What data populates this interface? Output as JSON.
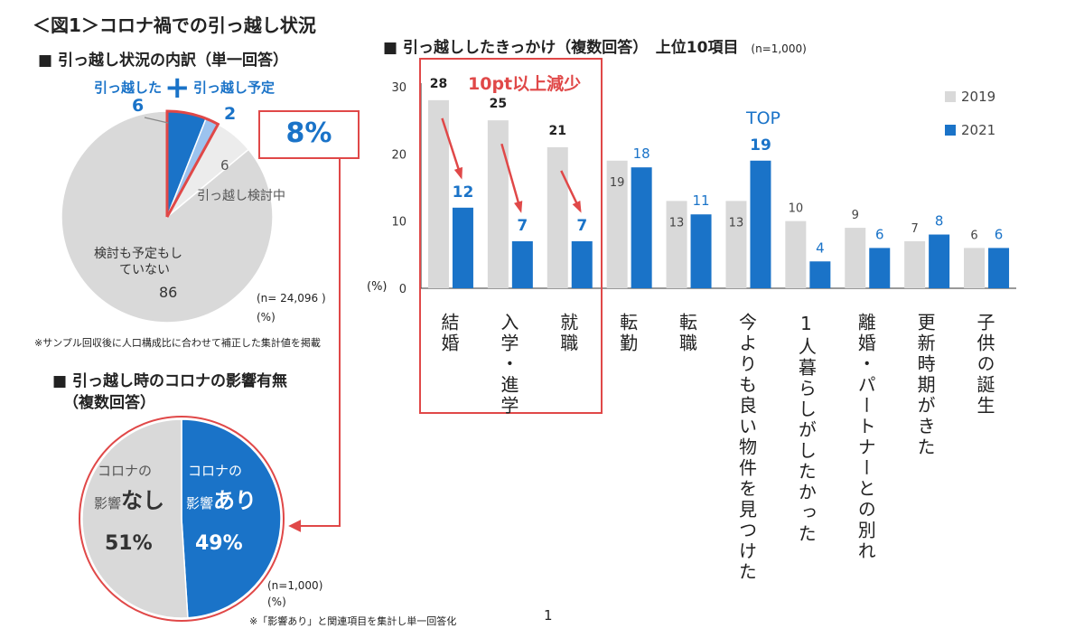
{
  "figure_title": "＜図1＞コロナ禍での引っ越し状況",
  "left_top": {
    "heading": "■ 引っ越し状況の内訳（単一回答）",
    "plus_sign": "+",
    "sample_note": "(n= 24,096 )",
    "unit": "(%)",
    "footnote": "※サンプル回収後に人口構成比に合わせて補正した集計値を掲載",
    "highlight": "8%"
  },
  "left_bottom": {
    "heading_line1": "■ 引っ越し時のコロナの影響有無",
    "heading_line2": "（複数回答）",
    "sample_note": "(n=1,000)",
    "unit": "(%)",
    "footnote": "※「影響あり」と関連項目を集計し単一回答化"
  },
  "right": {
    "heading": "■ 引っ越ししたきっかけ（複数回答）　上位10項目",
    "sample_note": "(n=1,000)",
    "unit": "(%)",
    "decline_note": "10pt以上減少",
    "top_label": "TOP"
  },
  "page_number": "1",
  "colors": {
    "c2019": "#d9d9d9",
    "c2021": "#1a73c8",
    "accent": "#e04848",
    "light_blue": "#9cc3ef"
  },
  "chart_data": [
    {
      "type": "pie",
      "slices": [
        {
          "label": "引っ越した",
          "value": 6
        },
        {
          "label": "引っ越し予定",
          "value": 2
        },
        {
          "label": "引っ越し検討中",
          "value": 6
        },
        {
          "label": "検討も予定もしていない",
          "value": 86
        }
      ],
      "value_labels": [
        "6",
        "2",
        "6",
        "86"
      ],
      "label_lines": {
        "considering": "引っ越し検討中",
        "none_1": "検討も予定もし",
        "none_2": "ていない"
      }
    },
    {
      "type": "pie",
      "slices": [
        {
          "label": "コロナの影響あり",
          "value": 49
        },
        {
          "label": "コロナの影響なし",
          "value": 51
        }
      ],
      "label_parts": {
        "corona": "コロナの",
        "eikyo": "影響",
        "ari": "あり",
        "nashi": "なし",
        "ari_pct": "49%",
        "nashi_pct": "51%"
      }
    },
    {
      "type": "bar",
      "categories": [
        "結婚",
        "入学・進学",
        "就職",
        "転勤",
        "転職",
        "今よりも良い物件を見つけた",
        "1人暮らしがしたかった",
        "離婚・パートナーとの別れ",
        "更新時期がきた",
        "子供の誕生"
      ],
      "series": [
        {
          "name": "2019",
          "values": [
            28,
            25,
            21,
            19,
            13,
            13,
            10,
            9,
            7,
            6
          ]
        },
        {
          "name": "2021",
          "values": [
            12,
            7,
            7,
            18,
            11,
            19,
            4,
            6,
            8,
            6
          ]
        }
      ],
      "ylim": [
        0,
        30
      ],
      "yticks": [
        0,
        10,
        20,
        30
      ],
      "legend": "right"
    }
  ]
}
